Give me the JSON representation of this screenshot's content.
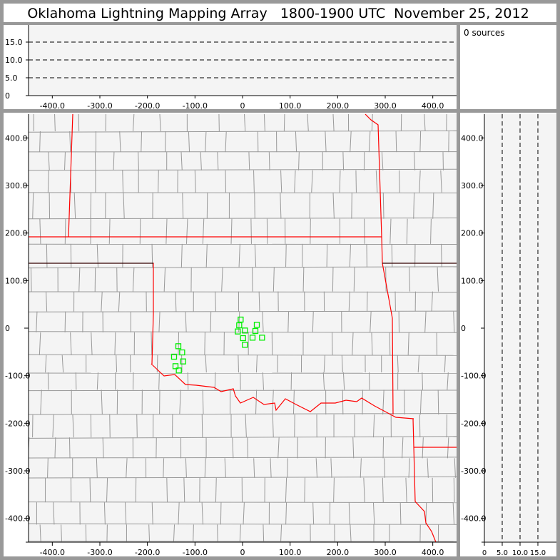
{
  "title": "Oklahoma Lightning Mapping Array   1800-1900 UTC  November 25, 2012",
  "sources_label": "0 sources",
  "colors": {
    "frame": "#999999",
    "plot_bg": "#f4f4f4",
    "state_border": "#ff0000",
    "county_border": "#999999",
    "station_marker": "#00ee00"
  },
  "chart_data": [
    {
      "type": "scatter",
      "panel": "altitude-vs-east-west",
      "x_ticks": [
        {
          "v": -400,
          "label": "-400.0"
        },
        {
          "v": -300,
          "label": "-300.0"
        },
        {
          "v": -200,
          "label": "-200.0"
        },
        {
          "v": -100,
          "label": "-100.0"
        },
        {
          "v": 0,
          "label": "0"
        },
        {
          "v": 100,
          "label": "100.0"
        },
        {
          "v": 200,
          "label": "200.0"
        },
        {
          "v": 300,
          "label": "300.0"
        },
        {
          "v": 400,
          "label": "400.0"
        }
      ],
      "y_ticks": [
        {
          "v": 0,
          "label": "0"
        },
        {
          "v": 5,
          "label": "5.0"
        },
        {
          "v": 10,
          "label": "10.0"
        },
        {
          "v": 15,
          "label": "15.0"
        }
      ],
      "xlim": [
        -450,
        450
      ],
      "ylim": [
        0,
        20
      ],
      "dashed_gridlines": [
        5,
        10,
        15
      ],
      "points": []
    },
    {
      "type": "scatter",
      "panel": "plan-view-map",
      "x_ticks": [
        {
          "v": -400,
          "label": "-400.0"
        },
        {
          "v": -300,
          "label": "-300.0"
        },
        {
          "v": -200,
          "label": "-200.0"
        },
        {
          "v": -100,
          "label": "-100.0"
        },
        {
          "v": 0,
          "label": "0"
        },
        {
          "v": 100,
          "label": "100.0"
        },
        {
          "v": 200,
          "label": "200.0"
        },
        {
          "v": 300,
          "label": "300.0"
        },
        {
          "v": 400,
          "label": "400.0"
        }
      ],
      "y_ticks": [
        {
          "v": 400,
          "label": "400.0"
        },
        {
          "v": 300,
          "label": "300.0"
        },
        {
          "v": 200,
          "label": "200.0"
        },
        {
          "v": 100,
          "label": "100.0"
        },
        {
          "v": 0,
          "label": "0"
        },
        {
          "v": -100,
          "label": "-100.0"
        },
        {
          "v": -200,
          "label": "-200.0"
        },
        {
          "v": -300,
          "label": "-300.0"
        },
        {
          "v": -400,
          "label": "-400.0"
        }
      ],
      "xlim": [
        -450,
        450
      ],
      "ylim": [
        -450,
        450
      ],
      "stations": [
        {
          "x": -4,
          "y": 18
        },
        {
          "x": -7,
          "y": 6
        },
        {
          "x": -10,
          "y": -7
        },
        {
          "x": 5,
          "y": -5
        },
        {
          "x": 1,
          "y": -21
        },
        {
          "x": 5,
          "y": -35
        },
        {
          "x": 30,
          "y": 7
        },
        {
          "x": 27,
          "y": -6
        },
        {
          "x": 21,
          "y": -20
        },
        {
          "x": 41,
          "y": -20
        },
        {
          "x": -135,
          "y": -38
        },
        {
          "x": -127,
          "y": -51
        },
        {
          "x": -144,
          "y": -60
        },
        {
          "x": -125,
          "y": -70
        },
        {
          "x": -141,
          "y": -80
        },
        {
          "x": -134,
          "y": -89
        }
      ],
      "points": []
    },
    {
      "type": "scatter",
      "panel": "north-south-vs-altitude",
      "x_ticks": [
        {
          "v": 0,
          "label": "0"
        },
        {
          "v": 5,
          "label": "5.0"
        },
        {
          "v": 10,
          "label": "10.0"
        },
        {
          "v": 15,
          "label": "15.0"
        }
      ],
      "y_ticks": [
        {
          "v": 400,
          "label": "400.0"
        },
        {
          "v": 300,
          "label": "300.0"
        },
        {
          "v": 200,
          "label": "200.0"
        },
        {
          "v": 100,
          "label": "100.0"
        },
        {
          "v": 0,
          "label": "0"
        },
        {
          "v": -100,
          "label": "-100.0"
        },
        {
          "v": -200,
          "label": "-200.0"
        },
        {
          "v": -300,
          "label": "-300.0"
        },
        {
          "v": -400,
          "label": "-400.0"
        }
      ],
      "xlim": [
        0,
        20
      ],
      "ylim": [
        -450,
        450
      ],
      "dashed_gridlines": [
        5,
        10,
        15
      ],
      "points": []
    }
  ]
}
